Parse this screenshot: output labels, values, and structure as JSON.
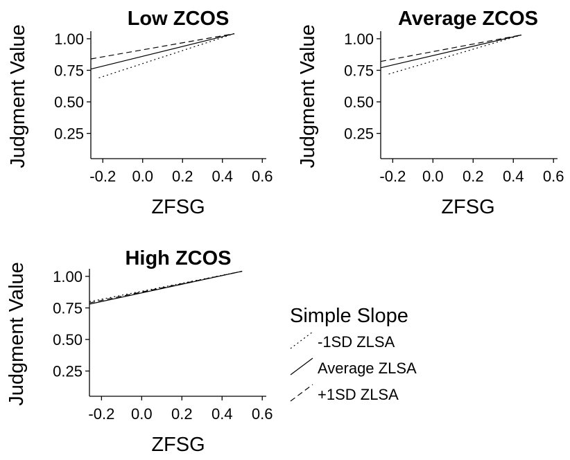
{
  "chart_data": [
    {
      "type": "line",
      "title": "Low ZCOS",
      "xlabel": "ZFSG",
      "ylabel": "Judgment Value",
      "xlim": [
        -0.26,
        0.62
      ],
      "ylim": [
        0.05,
        1.06
      ],
      "xticks": [
        -0.2,
        0.0,
        0.2,
        0.4,
        0.6
      ],
      "xtick_labels": [
        "-0.2",
        "0.0",
        "0.2",
        "0.4",
        "0.6"
      ],
      "yticks": [
        0.25,
        0.5,
        0.75,
        1.0
      ],
      "ytick_labels": [
        "0.25",
        "0.50",
        "0.75",
        "1.00"
      ],
      "grid": false,
      "series": [
        {
          "name": "-1SD ZLSA",
          "dash": "dotted",
          "x": [
            -0.22,
            0.46
          ],
          "y": [
            0.69,
            1.04
          ]
        },
        {
          "name": "Average ZLSA",
          "dash": "solid",
          "x": [
            -0.26,
            0.46
          ],
          "y": [
            0.76,
            1.04
          ]
        },
        {
          "name": "+1SD ZLSA",
          "dash": "dashed",
          "x": [
            -0.26,
            0.46
          ],
          "y": [
            0.84,
            1.04
          ]
        }
      ]
    },
    {
      "type": "line",
      "title": "Average ZCOS",
      "xlabel": "ZFSG",
      "ylabel": "Judgment Value",
      "xlim": [
        -0.26,
        0.62
      ],
      "ylim": [
        0.05,
        1.06
      ],
      "xticks": [
        -0.2,
        0.0,
        0.2,
        0.4,
        0.6
      ],
      "xtick_labels": [
        "-0.2",
        "0.0",
        "0.2",
        "0.4",
        "0.6"
      ],
      "yticks": [
        0.25,
        0.5,
        0.75,
        1.0
      ],
      "ytick_labels": [
        "0.25",
        "0.50",
        "0.75",
        "1.00"
      ],
      "grid": false,
      "series": [
        {
          "name": "-1SD ZLSA",
          "dash": "dotted",
          "x": [
            -0.22,
            0.44
          ],
          "y": [
            0.72,
            1.03
          ]
        },
        {
          "name": "Average ZLSA",
          "dash": "solid",
          "x": [
            -0.26,
            0.44
          ],
          "y": [
            0.77,
            1.03
          ]
        },
        {
          "name": "+1SD ZLSA",
          "dash": "dashed",
          "x": [
            -0.26,
            0.44
          ],
          "y": [
            0.82,
            1.03
          ]
        }
      ]
    },
    {
      "type": "line",
      "title": "High ZCOS",
      "xlabel": "ZFSG",
      "ylabel": "Judgment Value",
      "xlim": [
        -0.26,
        0.62
      ],
      "ylim": [
        0.05,
        1.06
      ],
      "xticks": [
        -0.2,
        0.0,
        0.2,
        0.4,
        0.6
      ],
      "xtick_labels": [
        "-0.2",
        "0.0",
        "0.2",
        "0.4",
        "0.6"
      ],
      "yticks": [
        0.25,
        0.5,
        0.75,
        1.0
      ],
      "ytick_labels": [
        "0.25",
        "0.50",
        "0.75",
        "1.00"
      ],
      "grid": false,
      "series": [
        {
          "name": "-1SD ZLSA",
          "dash": "dotted",
          "x": [
            -0.26,
            0.5
          ],
          "y": [
            0.8,
            1.04
          ]
        },
        {
          "name": "Average ZLSA",
          "dash": "solid",
          "x": [
            -0.26,
            0.5
          ],
          "y": [
            0.78,
            1.04
          ]
        },
        {
          "name": "+1SD ZLSA",
          "dash": "dashed",
          "x": [
            -0.26,
            0.5
          ],
          "y": [
            0.79,
            1.04
          ]
        }
      ]
    }
  ],
  "legend": {
    "title": "Simple Slope",
    "items": [
      {
        "label": "-1SD ZLSA",
        "dash": "dotted"
      },
      {
        "label": "Average ZLSA",
        "dash": "solid"
      },
      {
        "label": "+1SD ZLSA",
        "dash": "dashed"
      }
    ]
  },
  "colors": {
    "background": "#ffffff",
    "ink": "#000000"
  }
}
